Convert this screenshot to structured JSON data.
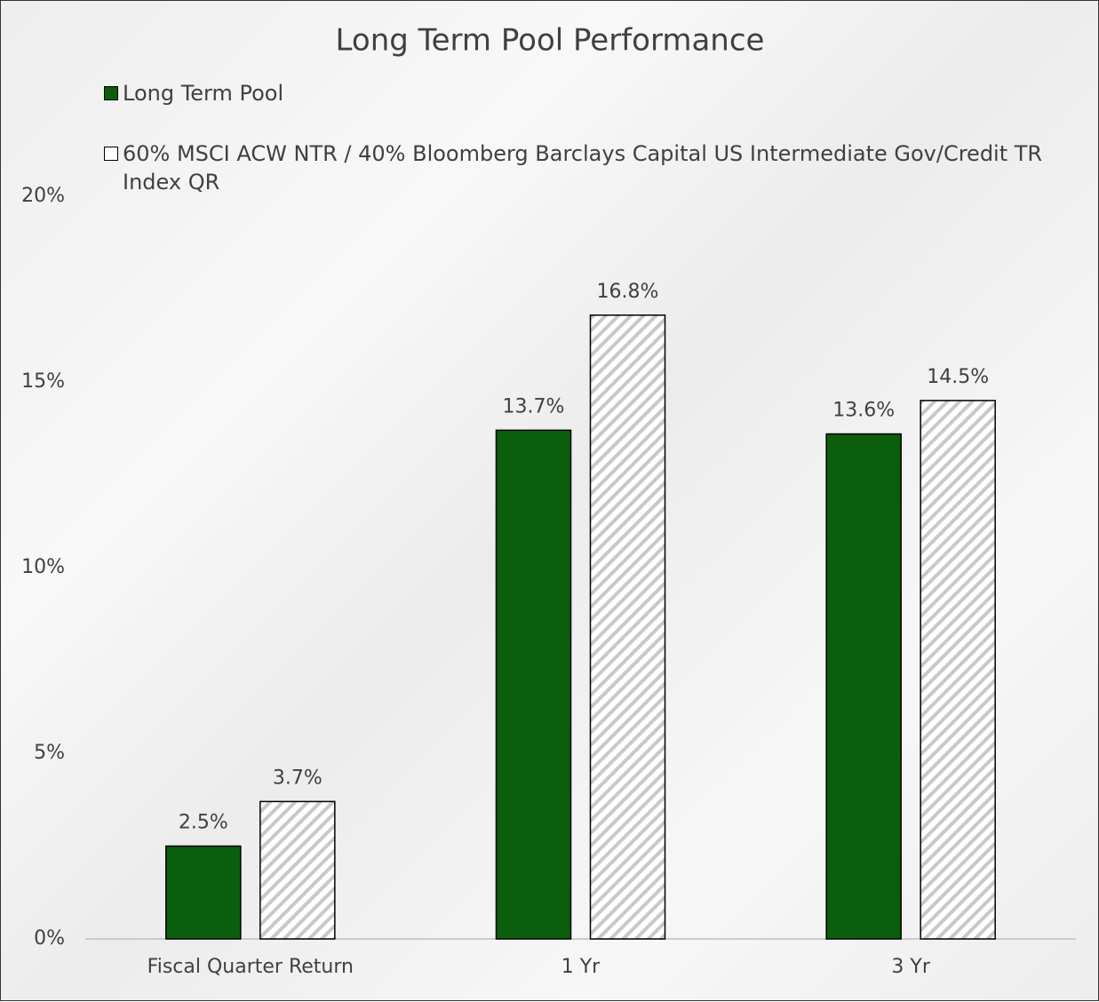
{
  "chart_data": {
    "type": "bar",
    "title": "Long Term Pool Performance",
    "categories": [
      "Fiscal Quarter Return",
      "1 Yr",
      "3 Yr"
    ],
    "series": [
      {
        "name": "Long Term Pool",
        "color": "#0b5e0b",
        "values": [
          2.5,
          13.7,
          13.6
        ],
        "value_labels": [
          "2.5%",
          "13.7%",
          "13.6%"
        ]
      },
      {
        "name": "60% MSCI ACW NTR / 40% Bloomberg Barclays Capital US Intermediate Gov/Credit TR Index QR",
        "color": "#c8c8c8",
        "pattern": "diagonal",
        "values": [
          3.7,
          16.8,
          14.5
        ],
        "value_labels": [
          "3.7%",
          "16.8%",
          "14.5%"
        ]
      }
    ],
    "ylim": [
      0,
      20
    ],
    "yticks": [
      {
        "value": 0,
        "label": "0%"
      },
      {
        "value": 5,
        "label": "5%"
      },
      {
        "value": 10,
        "label": "10%"
      },
      {
        "value": 15,
        "label": "15%"
      },
      {
        "value": 20,
        "label": "20%"
      }
    ],
    "grid": false,
    "legend": "top-left"
  }
}
